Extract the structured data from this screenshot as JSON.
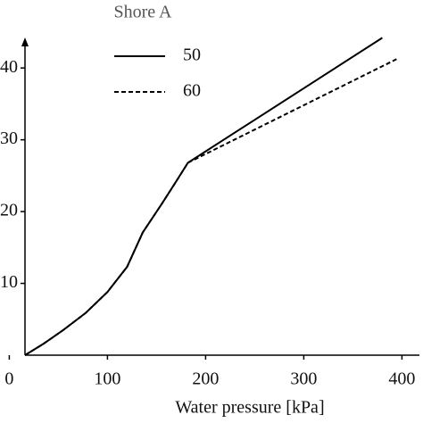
{
  "chart_data": {
    "type": "line",
    "x_label": "Water pressure [kPa]",
    "legend_title": "Shore A",
    "xlim": [
      16,
      400
    ],
    "ylim": [
      0,
      44
    ],
    "xticks": [
      0,
      100,
      200,
      300,
      400
    ],
    "yticks": [
      10,
      20,
      30,
      40
    ],
    "series": [
      {
        "name": "50",
        "color": "#000000",
        "dash": "solid",
        "x": [
          16,
          35,
          55,
          78,
          100,
          120,
          136,
          155,
          170,
          182,
          380
        ],
        "values": [
          0,
          1.6,
          3.5,
          5.9,
          8.8,
          12.3,
          17.1,
          21,
          24.2,
          26.8,
          44.2
        ]
      },
      {
        "name": "60",
        "color": "#000000",
        "dash": "dashed",
        "x": [
          16,
          35,
          55,
          78,
          100,
          120,
          136,
          155,
          170,
          182,
          397
        ],
        "values": [
          0,
          1.6,
          3.5,
          5.9,
          8.8,
          12.3,
          17.1,
          21,
          24.2,
          26.8,
          41.4
        ]
      }
    ]
  }
}
